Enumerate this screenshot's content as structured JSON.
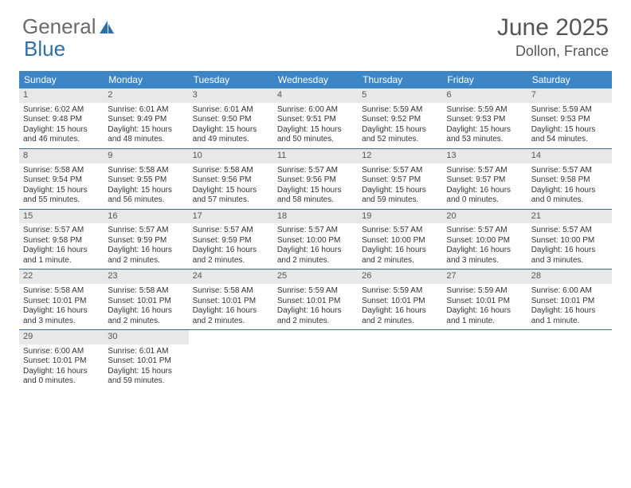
{
  "logo": {
    "text1": "General",
    "text2": "Blue"
  },
  "title": "June 2025",
  "location": "Dollon, France",
  "theme": {
    "header_bg": "#3d86c6",
    "header_text": "#ffffff",
    "daynum_bg": "#e8e8e8",
    "divider": "#3d6b94",
    "body_text": "#333333",
    "logo_gray": "#6b6b6b",
    "logo_blue": "#2f6fa8"
  },
  "dayNames": [
    "Sunday",
    "Monday",
    "Tuesday",
    "Wednesday",
    "Thursday",
    "Friday",
    "Saturday"
  ],
  "weeks": [
    [
      {
        "n": "1",
        "sr": "Sunrise: 6:02 AM",
        "ss": "Sunset: 9:48 PM",
        "dl": "Daylight: 15 hours and 46 minutes."
      },
      {
        "n": "2",
        "sr": "Sunrise: 6:01 AM",
        "ss": "Sunset: 9:49 PM",
        "dl": "Daylight: 15 hours and 48 minutes."
      },
      {
        "n": "3",
        "sr": "Sunrise: 6:01 AM",
        "ss": "Sunset: 9:50 PM",
        "dl": "Daylight: 15 hours and 49 minutes."
      },
      {
        "n": "4",
        "sr": "Sunrise: 6:00 AM",
        "ss": "Sunset: 9:51 PM",
        "dl": "Daylight: 15 hours and 50 minutes."
      },
      {
        "n": "5",
        "sr": "Sunrise: 5:59 AM",
        "ss": "Sunset: 9:52 PM",
        "dl": "Daylight: 15 hours and 52 minutes."
      },
      {
        "n": "6",
        "sr": "Sunrise: 5:59 AM",
        "ss": "Sunset: 9:53 PM",
        "dl": "Daylight: 15 hours and 53 minutes."
      },
      {
        "n": "7",
        "sr": "Sunrise: 5:59 AM",
        "ss": "Sunset: 9:53 PM",
        "dl": "Daylight: 15 hours and 54 minutes."
      }
    ],
    [
      {
        "n": "8",
        "sr": "Sunrise: 5:58 AM",
        "ss": "Sunset: 9:54 PM",
        "dl": "Daylight: 15 hours and 55 minutes."
      },
      {
        "n": "9",
        "sr": "Sunrise: 5:58 AM",
        "ss": "Sunset: 9:55 PM",
        "dl": "Daylight: 15 hours and 56 minutes."
      },
      {
        "n": "10",
        "sr": "Sunrise: 5:58 AM",
        "ss": "Sunset: 9:56 PM",
        "dl": "Daylight: 15 hours and 57 minutes."
      },
      {
        "n": "11",
        "sr": "Sunrise: 5:57 AM",
        "ss": "Sunset: 9:56 PM",
        "dl": "Daylight: 15 hours and 58 minutes."
      },
      {
        "n": "12",
        "sr": "Sunrise: 5:57 AM",
        "ss": "Sunset: 9:57 PM",
        "dl": "Daylight: 15 hours and 59 minutes."
      },
      {
        "n": "13",
        "sr": "Sunrise: 5:57 AM",
        "ss": "Sunset: 9:57 PM",
        "dl": "Daylight: 16 hours and 0 minutes."
      },
      {
        "n": "14",
        "sr": "Sunrise: 5:57 AM",
        "ss": "Sunset: 9:58 PM",
        "dl": "Daylight: 16 hours and 0 minutes."
      }
    ],
    [
      {
        "n": "15",
        "sr": "Sunrise: 5:57 AM",
        "ss": "Sunset: 9:58 PM",
        "dl": "Daylight: 16 hours and 1 minute."
      },
      {
        "n": "16",
        "sr": "Sunrise: 5:57 AM",
        "ss": "Sunset: 9:59 PM",
        "dl": "Daylight: 16 hours and 2 minutes."
      },
      {
        "n": "17",
        "sr": "Sunrise: 5:57 AM",
        "ss": "Sunset: 9:59 PM",
        "dl": "Daylight: 16 hours and 2 minutes."
      },
      {
        "n": "18",
        "sr": "Sunrise: 5:57 AM",
        "ss": "Sunset: 10:00 PM",
        "dl": "Daylight: 16 hours and 2 minutes."
      },
      {
        "n": "19",
        "sr": "Sunrise: 5:57 AM",
        "ss": "Sunset: 10:00 PM",
        "dl": "Daylight: 16 hours and 2 minutes."
      },
      {
        "n": "20",
        "sr": "Sunrise: 5:57 AM",
        "ss": "Sunset: 10:00 PM",
        "dl": "Daylight: 16 hours and 3 minutes."
      },
      {
        "n": "21",
        "sr": "Sunrise: 5:57 AM",
        "ss": "Sunset: 10:00 PM",
        "dl": "Daylight: 16 hours and 3 minutes."
      }
    ],
    [
      {
        "n": "22",
        "sr": "Sunrise: 5:58 AM",
        "ss": "Sunset: 10:01 PM",
        "dl": "Daylight: 16 hours and 3 minutes."
      },
      {
        "n": "23",
        "sr": "Sunrise: 5:58 AM",
        "ss": "Sunset: 10:01 PM",
        "dl": "Daylight: 16 hours and 2 minutes."
      },
      {
        "n": "24",
        "sr": "Sunrise: 5:58 AM",
        "ss": "Sunset: 10:01 PM",
        "dl": "Daylight: 16 hours and 2 minutes."
      },
      {
        "n": "25",
        "sr": "Sunrise: 5:59 AM",
        "ss": "Sunset: 10:01 PM",
        "dl": "Daylight: 16 hours and 2 minutes."
      },
      {
        "n": "26",
        "sr": "Sunrise: 5:59 AM",
        "ss": "Sunset: 10:01 PM",
        "dl": "Daylight: 16 hours and 2 minutes."
      },
      {
        "n": "27",
        "sr": "Sunrise: 5:59 AM",
        "ss": "Sunset: 10:01 PM",
        "dl": "Daylight: 16 hours and 1 minute."
      },
      {
        "n": "28",
        "sr": "Sunrise: 6:00 AM",
        "ss": "Sunset: 10:01 PM",
        "dl": "Daylight: 16 hours and 1 minute."
      }
    ],
    [
      {
        "n": "29",
        "sr": "Sunrise: 6:00 AM",
        "ss": "Sunset: 10:01 PM",
        "dl": "Daylight: 16 hours and 0 minutes."
      },
      {
        "n": "30",
        "sr": "Sunrise: 6:01 AM",
        "ss": "Sunset: 10:01 PM",
        "dl": "Daylight: 15 hours and 59 minutes."
      },
      null,
      null,
      null,
      null,
      null
    ]
  ]
}
